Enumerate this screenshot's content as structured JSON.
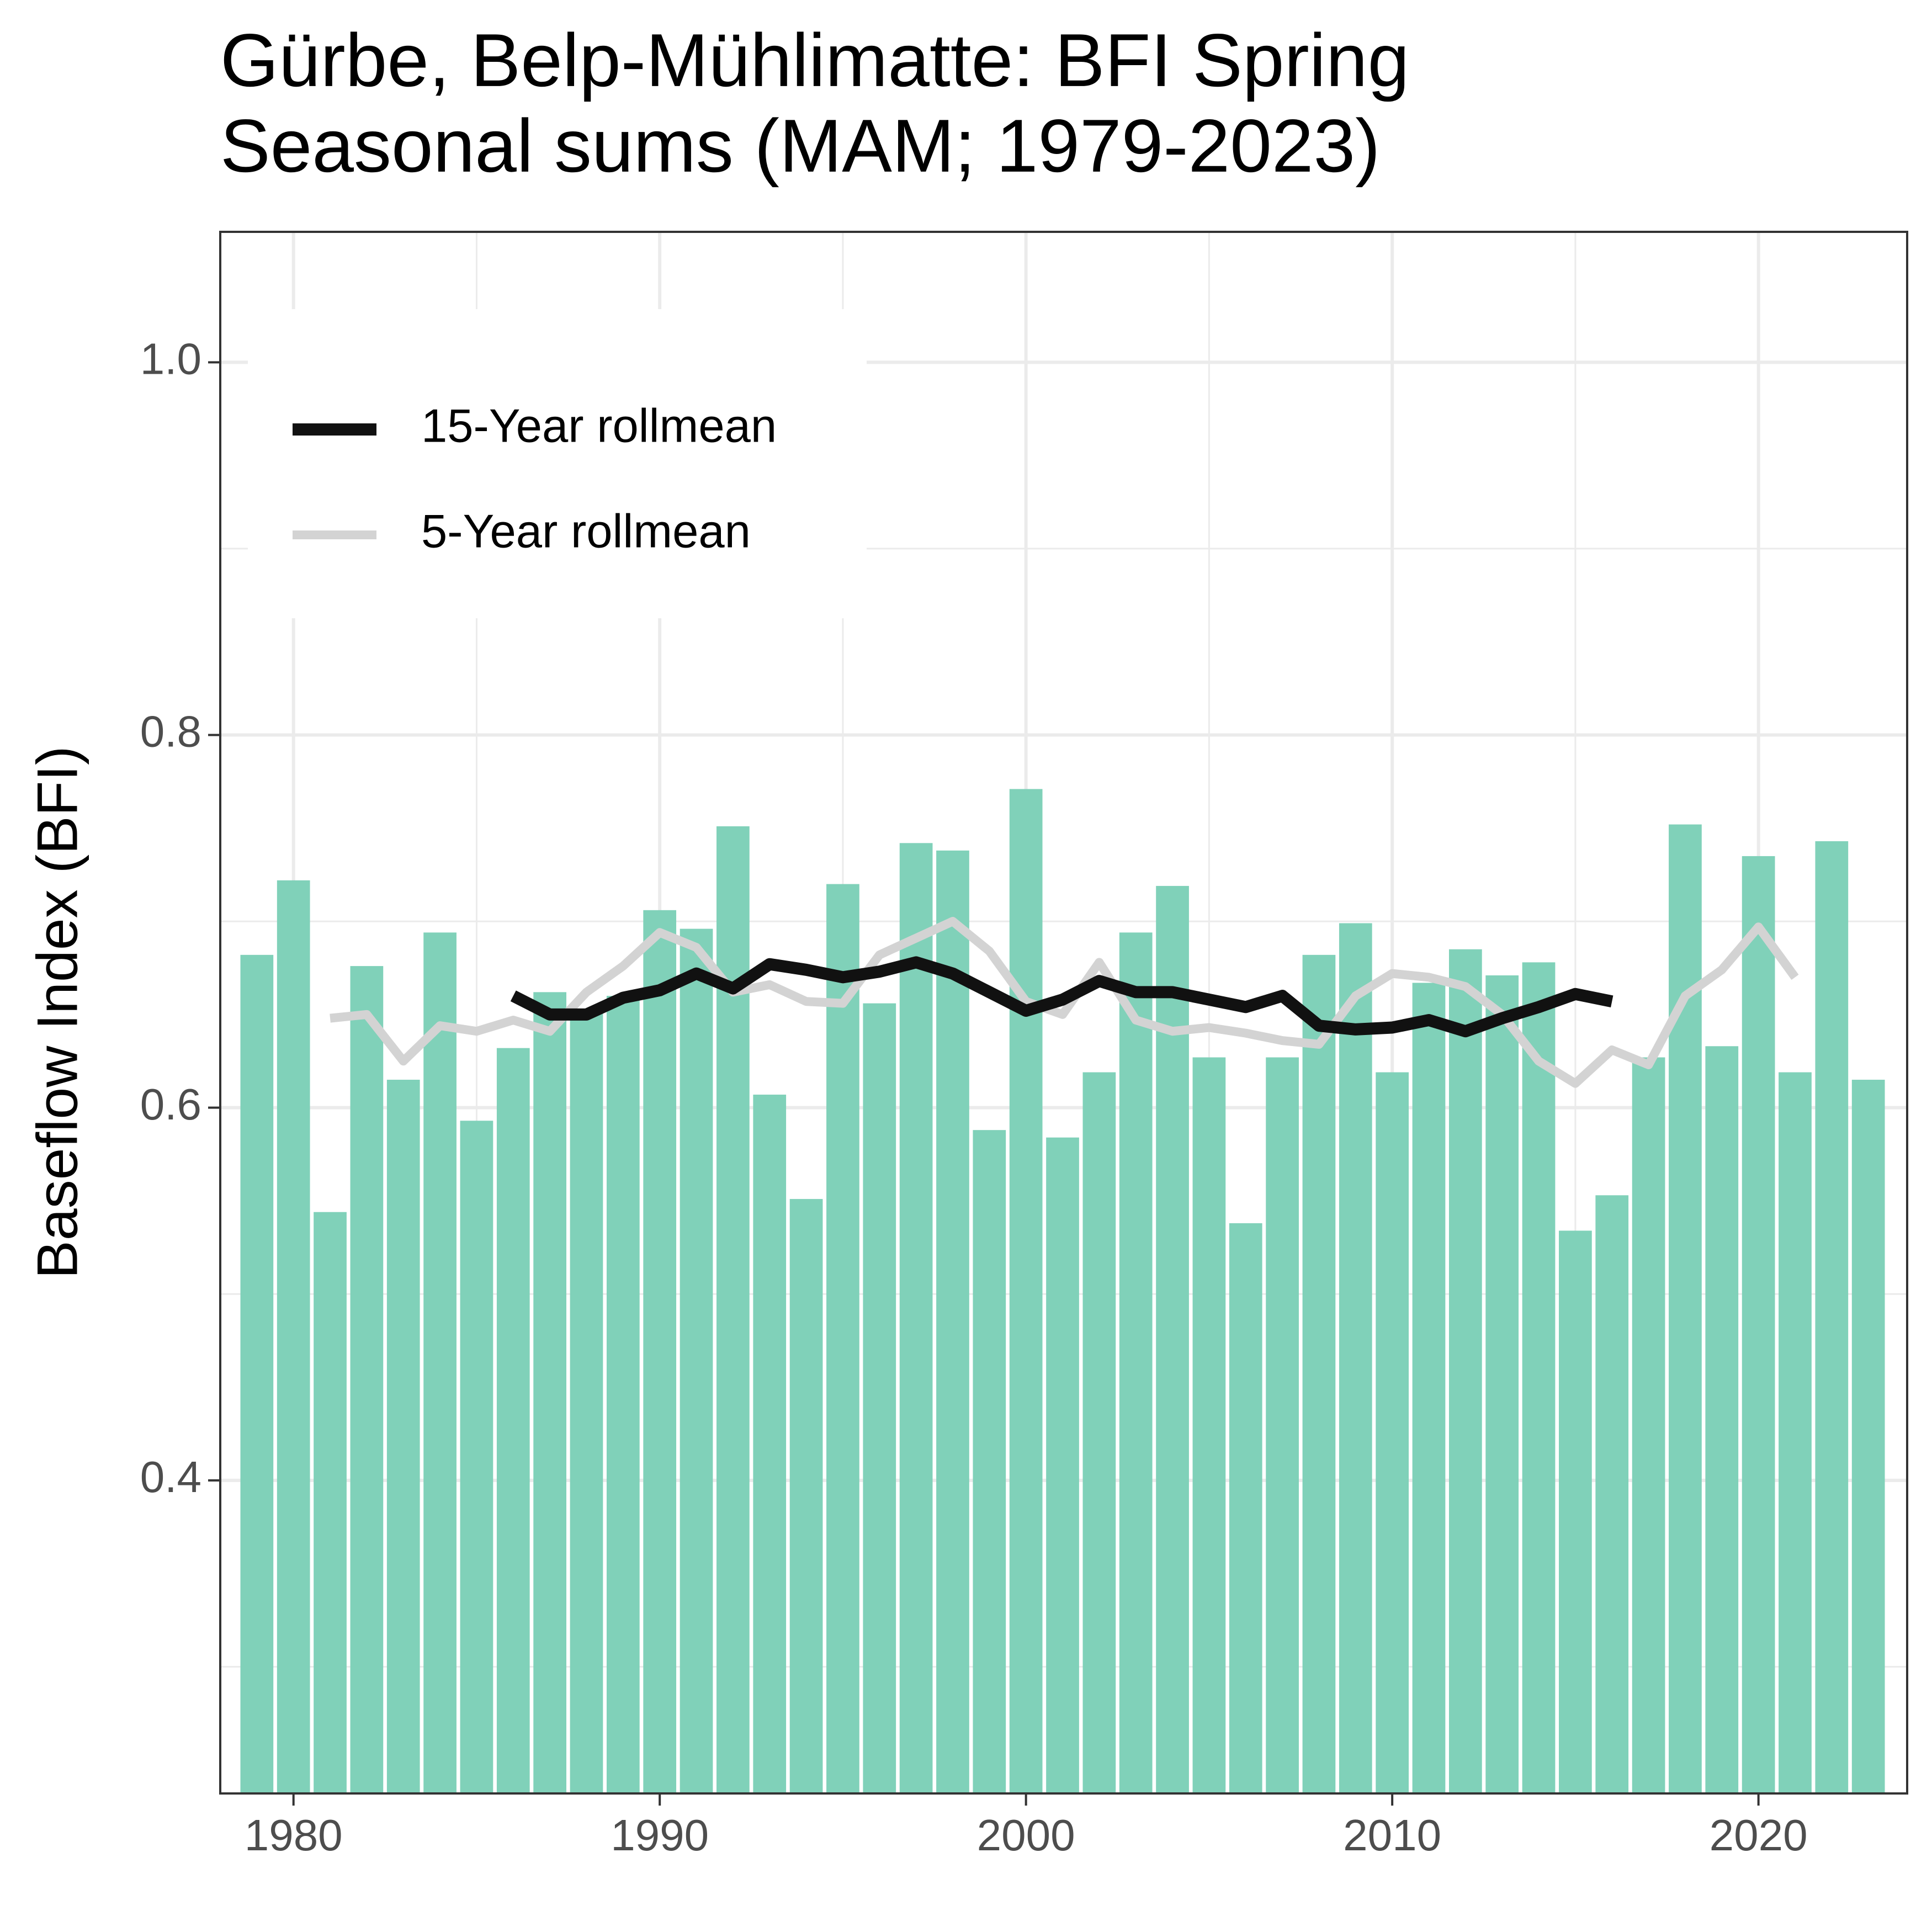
{
  "chart_data": {
    "type": "bar",
    "title": "Gürbe, Belp-Mühlimatte: BFI Spring",
    "subtitle": "Seasonal sums (MAM; 1979-2023)",
    "y_label": "Baseflow Index (BFI)",
    "x": [
      1979,
      1980,
      1981,
      1982,
      1983,
      1984,
      1985,
      1986,
      1987,
      1988,
      1989,
      1990,
      1991,
      1992,
      1993,
      1994,
      1995,
      1996,
      1997,
      1998,
      1999,
      2000,
      2001,
      2002,
      2003,
      2004,
      2005,
      2006,
      2007,
      2008,
      2009,
      2010,
      2011,
      2012,
      2013,
      2014,
      2015,
      2016,
      2017,
      2018,
      2019,
      2020,
      2021,
      2022,
      2023
    ],
    "values": [
      0.682,
      0.722,
      0.544,
      0.676,
      0.615,
      0.694,
      0.593,
      0.632,
      0.662,
      0.652,
      0.66,
      0.706,
      0.696,
      0.751,
      0.607,
      0.551,
      0.72,
      0.656,
      0.742,
      0.738,
      0.588,
      0.771,
      0.584,
      0.619,
      0.694,
      0.719,
      0.627,
      0.538,
      0.627,
      0.682,
      0.699,
      0.619,
      0.667,
      0.685,
      0.671,
      0.678,
      0.534,
      0.553,
      0.627,
      0.752,
      0.633,
      0.735,
      0.619,
      0.743,
      0.615
    ],
    "color": "#80d1b9",
    "series": [
      {
        "name": "15-Year rollmean",
        "type": "line",
        "color": "#111111",
        "values": [
          null,
          null,
          null,
          null,
          null,
          null,
          null,
          0.66,
          0.65,
          0.65,
          0.659,
          0.663,
          0.672,
          0.664,
          0.677,
          0.674,
          0.67,
          0.673,
          0.678,
          0.672,
          0.662,
          0.652,
          0.658,
          0.668,
          0.662,
          0.662,
          0.658,
          0.654,
          0.66,
          0.644,
          0.642,
          0.643,
          0.647,
          0.641,
          0.648,
          0.654,
          0.661,
          0.657,
          null,
          null,
          null,
          null,
          null,
          null,
          null
        ]
      },
      {
        "name": "5-Year rollmean",
        "type": "line",
        "color": "#d3d3d3",
        "values": [
          null,
          null,
          0.648,
          0.65,
          0.625,
          0.644,
          0.641,
          0.647,
          0.641,
          0.662,
          0.676,
          0.694,
          0.686,
          0.662,
          0.666,
          0.657,
          0.656,
          0.682,
          0.691,
          0.7,
          0.684,
          0.657,
          0.65,
          0.678,
          0.647,
          0.641,
          0.643,
          0.64,
          0.636,
          0.634,
          0.66,
          0.672,
          0.67,
          0.665,
          0.65,
          0.625,
          0.613,
          0.631,
          0.623,
          0.66,
          0.674,
          0.697,
          0.67,
          null,
          null
        ]
      }
    ],
    "xlim": [
      1978.0,
      2024.06
    ],
    "xticks": [
      1980,
      1990,
      2000,
      2010,
      2020
    ],
    "xminorticks": [
      1985,
      1995,
      2005,
      2015
    ],
    "ylim": [
      0.232,
      1.07
    ],
    "yticks": [
      0.4,
      0.6,
      0.8,
      {
        "value": 1,
        "label": "1.0"
      }
    ],
    "yminorticks": [
      0.3,
      0.5,
      0.7,
      0.9
    ],
    "grid": true,
    "legend": "top-left"
  }
}
